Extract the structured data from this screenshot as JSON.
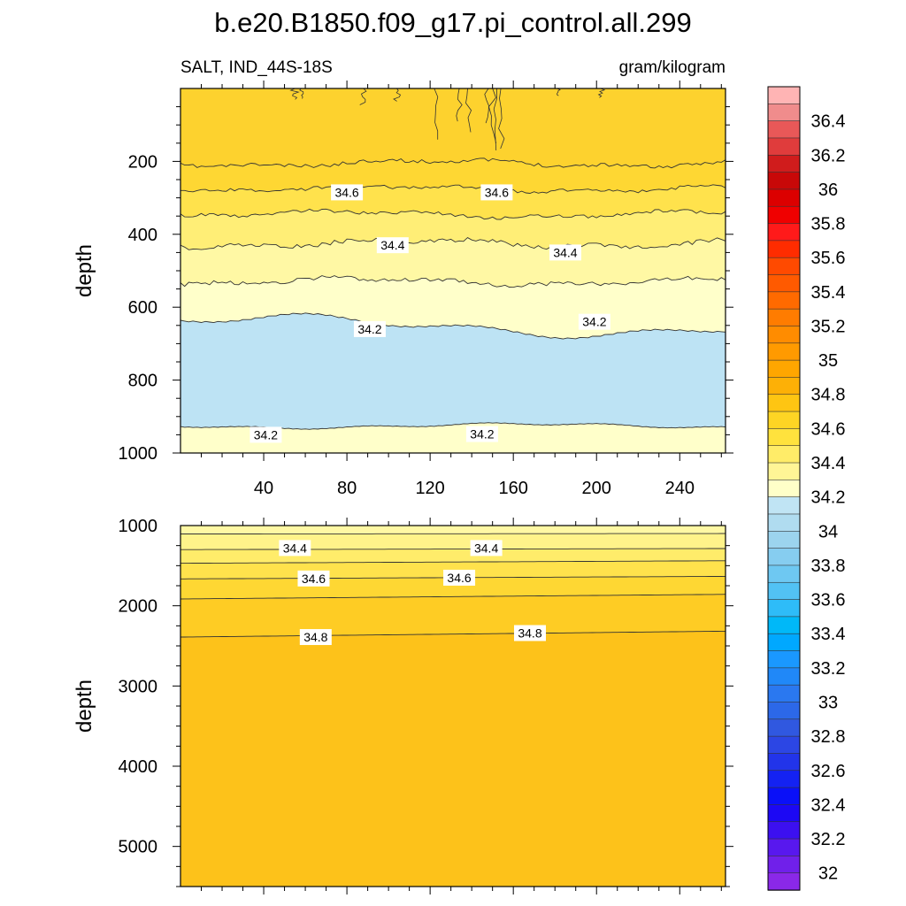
{
  "chart_data": [
    {
      "type": "contour",
      "title": "b.e20.B1850.f09_g17.pi_control.all.299",
      "subtitle_left": "SALT, IND_44S-18S",
      "subtitle_right": "gram/kilogram",
      "ylabel": "depth",
      "xlim": [
        0,
        262
      ],
      "ylim": [
        0,
        1000
      ],
      "y_reversed": true,
      "x_ticks": [
        "40",
        "80",
        "120",
        "160",
        "200",
        "240"
      ],
      "y_ticks": [
        "200",
        "400",
        "600",
        "800",
        "1000"
      ],
      "contour_labels": [
        {
          "text": "34.6",
          "x": 80,
          "y": 285
        },
        {
          "text": "34.6",
          "x": 152,
          "y": 285
        },
        {
          "text": "34.4",
          "x": 102,
          "y": 430
        },
        {
          "text": "34.4",
          "x": 185,
          "y": 450
        },
        {
          "text": "34.2",
          "x": 91,
          "y": 660
        },
        {
          "text": "34.2",
          "x": 199,
          "y": 640
        },
        {
          "text": "34.2",
          "x": 41,
          "y": 950
        },
        {
          "text": "34.2",
          "x": 145,
          "y": 948
        }
      ]
    },
    {
      "type": "contour",
      "ylabel": "depth",
      "xlim": [
        0,
        262
      ],
      "ylim": [
        1000,
        5500
      ],
      "y_reversed": true,
      "y_ticks": [
        "1000",
        "2000",
        "3000",
        "4000",
        "5000"
      ],
      "contour_labels": [
        {
          "text": "34.4",
          "x": 55,
          "y": 1280
        },
        {
          "text": "34.4",
          "x": 147,
          "y": 1280
        },
        {
          "text": "34.6",
          "x": 64,
          "y": 1660
        },
        {
          "text": "34.6",
          "x": 134,
          "y": 1650
        },
        {
          "text": "34.8",
          "x": 65,
          "y": 2390
        },
        {
          "text": "34.8",
          "x": 168,
          "y": 2340
        }
      ]
    }
  ],
  "colorbar": {
    "labels": [
      "36.4",
      "36.2",
      "36",
      "35.8",
      "35.6",
      "35.4",
      "35.2",
      "35",
      "34.8",
      "34.6",
      "34.4",
      "34.2",
      "34",
      "33.8",
      "33.6",
      "33.4",
      "33.2",
      "33",
      "32.8",
      "32.6",
      "32.4",
      "32.2",
      "32"
    ],
    "colors": [
      "#ffb4b4",
      "#f08c8c",
      "#e85858",
      "#e03c3c",
      "#d01c1c",
      "#c80808",
      "#dc0000",
      "#f00000",
      "#ff1a1a",
      "#ff2c00",
      "#ff4a00",
      "#ff5a00",
      "#ff6a00",
      "#ff7c00",
      "#ff8c00",
      "#ff9a00",
      "#ffa600",
      "#fdb006",
      "#fec512",
      "#fed524",
      "#ffe23d",
      "#ffec68",
      "#fff596",
      "#ffffc8",
      "#c0e4f4",
      "#b0dcf0",
      "#9cd4ee",
      "#86cdf0",
      "#6ec8f2",
      "#52c2f4",
      "#2ebcf8",
      "#00b8f8",
      "#00a8ff",
      "#1a98ff",
      "#2088f8",
      "#2a78f0",
      "#2c68e8",
      "#3058e0",
      "#2c46e4",
      "#2234ea",
      "#1422f2",
      "#0a10f8",
      "#1c08f4",
      "#3c10f0",
      "#5818ee",
      "#7020ea",
      "#8a28e8"
    ]
  }
}
